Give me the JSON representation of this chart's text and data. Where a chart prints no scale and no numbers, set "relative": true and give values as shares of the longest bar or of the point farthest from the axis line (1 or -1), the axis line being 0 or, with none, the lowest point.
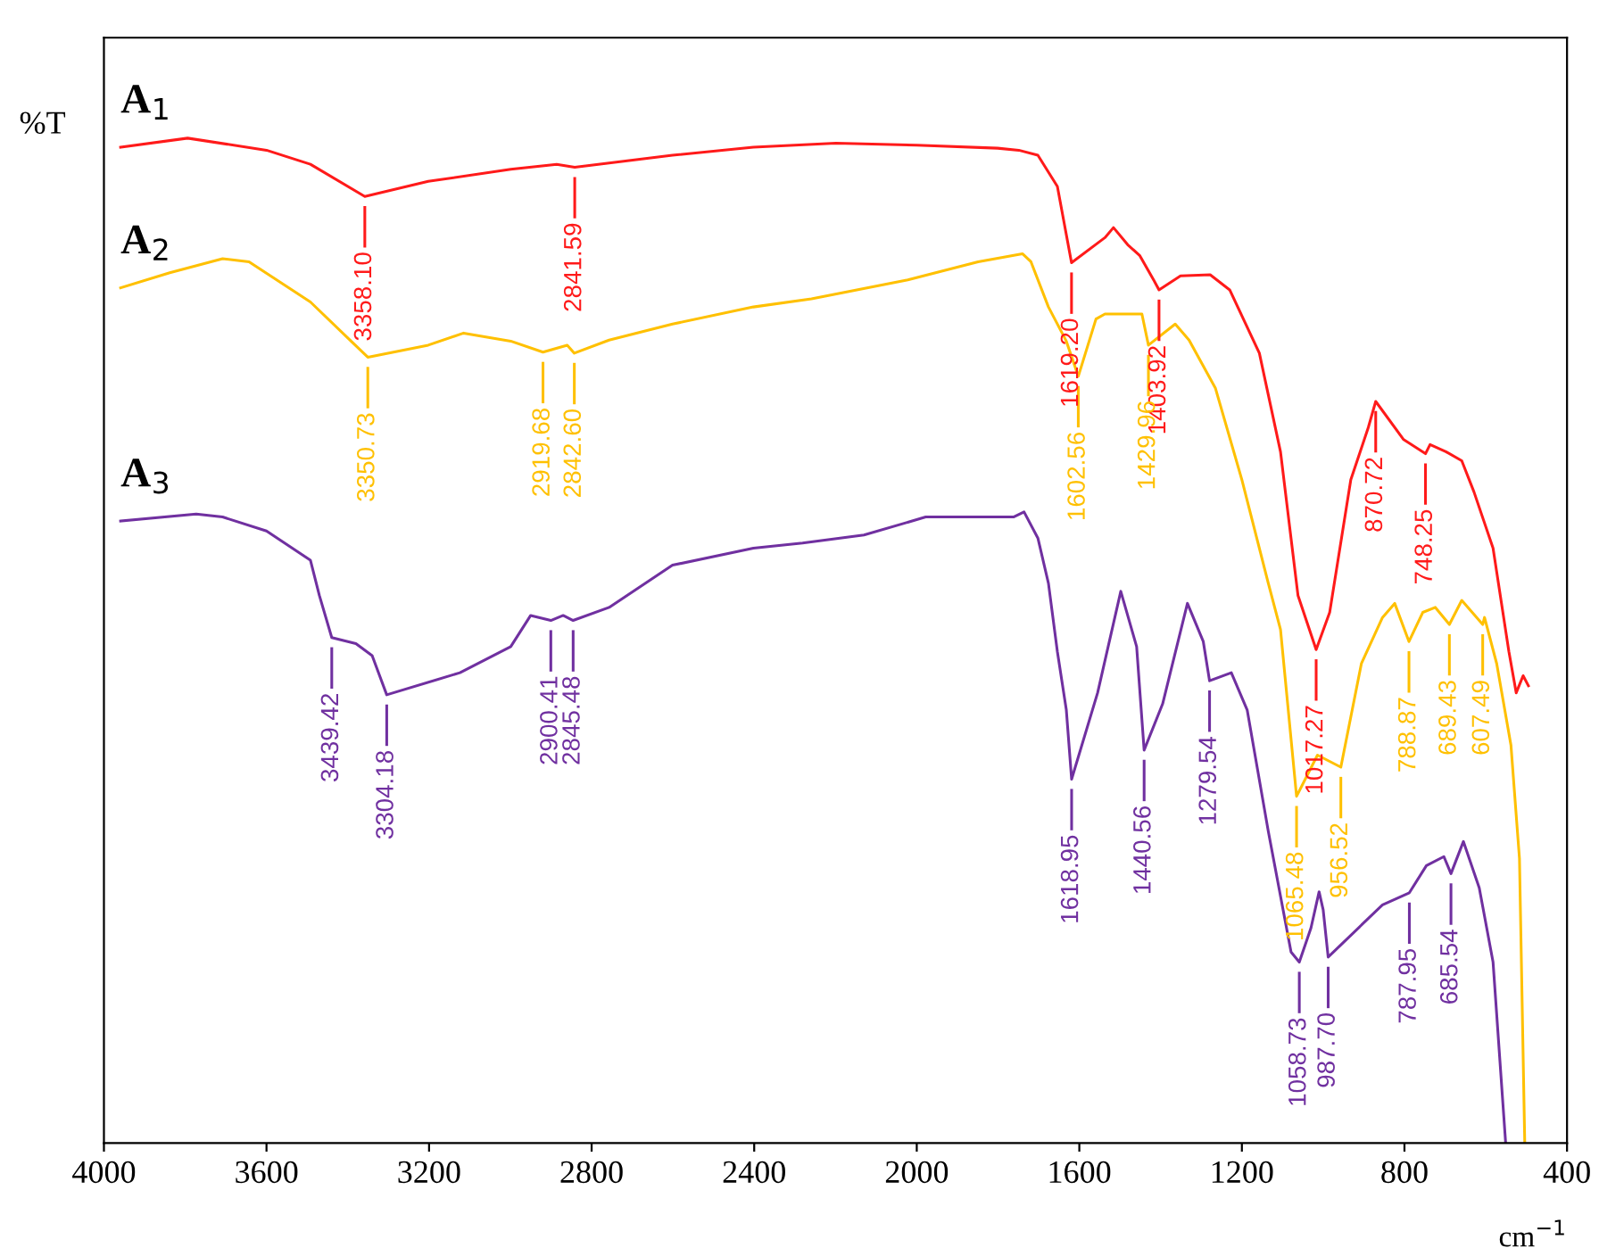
{
  "chart_data": {
    "type": "line",
    "relative": true,
    "xlabel": "cm$^{−1}$",
    "ylabel": "%T",
    "xlim": [
      4000,
      400
    ],
    "xticks": [
      4000,
      3600,
      3200,
      2800,
      2400,
      2000,
      1600,
      1200,
      800,
      400
    ],
    "grid": false,
    "legend": false,
    "marker": "none",
    "line_style": "solid",
    "series": [
      {
        "name": "A$_{1}$",
        "color": "#ff1a1a",
        "x": [
          3959,
          3794,
          3600,
          3492,
          3358.1,
          3202,
          2999,
          2886,
          2841.59,
          2601,
          2402,
          2199,
          2000,
          1801,
          1749,
          1702,
          1654,
          1619.2,
          1537,
          1516,
          1481,
          1451,
          1416,
          1403.92,
          1351,
          1278,
          1230,
          1157,
          1105,
          1062,
          1017.27,
          984,
          932,
          889,
          870.72,
          802,
          748.25,
          737,
          698,
          659,
          629,
          582,
          543,
          525,
          508,
          495
        ],
        "values": [
          0.991,
          1.0,
          0.988,
          0.974,
          0.942,
          0.957,
          0.969,
          0.974,
          0.971,
          0.983,
          0.991,
          0.995,
          0.993,
          0.99,
          0.988,
          0.983,
          0.952,
          0.876,
          0.901,
          0.911,
          0.894,
          0.883,
          0.858,
          0.849,
          0.863,
          0.864,
          0.849,
          0.786,
          0.688,
          0.545,
          0.491,
          0.528,
          0.66,
          0.712,
          0.738,
          0.7,
          0.686,
          0.695,
          0.688,
          0.679,
          0.648,
          0.592,
          0.489,
          0.448,
          0.465,
          0.455
        ]
      },
      {
        "name": "A$_{2}$",
        "color": "#ffc000",
        "x": [
          3959,
          3838,
          3708,
          3643,
          3492,
          3392,
          3350.73,
          3202,
          3115,
          2999,
          2919.68,
          2860,
          2842.6,
          2757,
          2601,
          2402,
          2259,
          2022,
          1849,
          1740,
          1719,
          1676,
          1632,
          1602.56,
          1559,
          1537,
          1446,
          1429.96,
          1364,
          1330,
          1265,
          1200,
          1135,
          1105,
          1065.48,
          1014,
          956.52,
          906,
          854,
          824,
          788.87,
          755,
          724,
          689.43,
          659,
          607.49,
          603,
          573,
          538,
          517,
          504
        ],
        "values": [
          0.851,
          0.866,
          0.88,
          0.877,
          0.837,
          0.798,
          0.782,
          0.794,
          0.806,
          0.798,
          0.787,
          0.794,
          0.786,
          0.799,
          0.815,
          0.832,
          0.84,
          0.859,
          0.877,
          0.885,
          0.877,
          0.832,
          0.798,
          0.763,
          0.82,
          0.825,
          0.825,
          0.794,
          0.815,
          0.799,
          0.751,
          0.66,
          0.557,
          0.511,
          0.345,
          0.386,
          0.374,
          0.477,
          0.523,
          0.537,
          0.499,
          0.528,
          0.533,
          0.516,
          0.54,
          0.516,
          0.523,
          0.477,
          0.396,
          0.283,
          0.0
        ]
      },
      {
        "name": "A$_{3}$",
        "color": "#7030a0",
        "x": [
          3959,
          3773,
          3708,
          3600,
          3492,
          3470,
          3439.42,
          3380,
          3340,
          3304.18,
          3124,
          2999,
          2950,
          2900.41,
          2870,
          2845.48,
          2757,
          2601,
          2402,
          2281,
          2130,
          1978,
          1762,
          1736,
          1702,
          1676,
          1654,
          1632,
          1618.95,
          1555,
          1498,
          1459,
          1440.56,
          1395,
          1334,
          1295,
          1279.54,
          1226,
          1187,
          1135,
          1079,
          1058.73,
          1030,
          1010,
          1000,
          987.7,
          854,
          787.95,
          746,
          703,
          685.54,
          655,
          616,
          582,
          551
        ],
        "values": [
          0.619,
          0.626,
          0.623,
          0.609,
          0.58,
          0.545,
          0.503,
          0.497,
          0.485,
          0.446,
          0.468,
          0.494,
          0.525,
          0.52,
          0.525,
          0.52,
          0.533,
          0.575,
          0.592,
          0.597,
          0.605,
          0.623,
          0.623,
          0.628,
          0.602,
          0.557,
          0.489,
          0.431,
          0.362,
          0.448,
          0.549,
          0.494,
          0.391,
          0.437,
          0.537,
          0.499,
          0.46,
          0.468,
          0.431,
          0.31,
          0.19,
          0.18,
          0.214,
          0.25,
          0.232,
          0.185,
          0.237,
          0.249,
          0.276,
          0.285,
          0.268,
          0.3,
          0.254,
          0.18,
          0.0
        ]
      }
    ],
    "annotations": [
      {
        "text": "3358.10",
        "x": 3358.1,
        "y": 0.942
      },
      {
        "text": "2841.59",
        "x": 2841.59,
        "y": 0.971
      },
      {
        "text": "1619.20",
        "x": 1619.2,
        "y": 0.876
      },
      {
        "text": "1403.92",
        "x": 1403.92,
        "y": 0.849
      },
      {
        "text": "1017.27",
        "x": 1017.27,
        "y": 0.491
      },
      {
        "text": "870.72",
        "x": 870.72,
        "y": 0.738
      },
      {
        "text": "748.25",
        "x": 748.25,
        "y": 0.686
      },
      {
        "text": "3350.73",
        "x": 3350.73,
        "y": 0.782
      },
      {
        "text": "2919.68",
        "x": 2919.68,
        "y": 0.787
      },
      {
        "text": "2842.60",
        "x": 2842.6,
        "y": 0.786
      },
      {
        "text": "1602.56",
        "x": 1602.56,
        "y": 0.763
      },
      {
        "text": "1429.96",
        "x": 1429.96,
        "y": 0.794
      },
      {
        "text": "1065.48",
        "x": 1065.48,
        "y": 0.345
      },
      {
        "text": "956.52",
        "x": 956.52,
        "y": 0.374
      },
      {
        "text": "788.87",
        "x": 788.87,
        "y": 0.499
      },
      {
        "text": "689.43",
        "x": 689.43,
        "y": 0.516
      },
      {
        "text": "607.49",
        "x": 607.49,
        "y": 0.516
      },
      {
        "text": "3439.42",
        "x": 3439.42,
        "y": 0.503
      },
      {
        "text": "3304.18",
        "x": 3304.18,
        "y": 0.446
      },
      {
        "text": "2900.41",
        "x": 2900.41,
        "y": 0.52
      },
      {
        "text": "2845.48",
        "x": 2845.48,
        "y": 0.52
      },
      {
        "text": "1618.95",
        "x": 1618.95,
        "y": 0.362
      },
      {
        "text": "1440.56",
        "x": 1440.56,
        "y": 0.391
      },
      {
        "text": "1279.54",
        "x": 1279.54,
        "y": 0.46
      },
      {
        "text": "1058.73",
        "x": 1058.73,
        "y": 0.18
      },
      {
        "text": "987.70",
        "x": 987.7,
        "y": 0.185
      },
      {
        "text": "787.95",
        "x": 787.95,
        "y": 0.249
      },
      {
        "text": "685.54",
        "x": 685.54,
        "y": 0.268
      }
    ]
  }
}
